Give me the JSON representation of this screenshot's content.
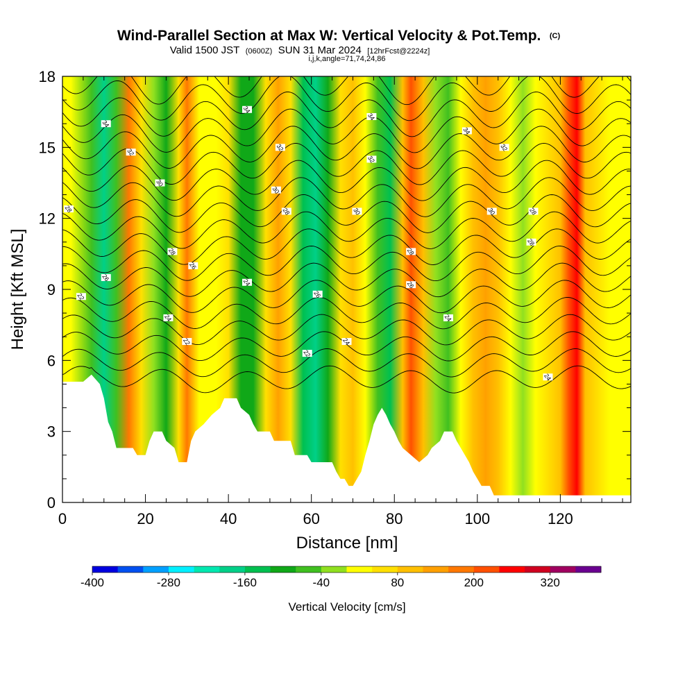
{
  "chart_data": {
    "type": "heatmap",
    "title": "Wind-Parallel Section at Max W: Vertical Velocity & Pot.Temp.",
    "title_mark": "(C)",
    "subtitle": {
      "prefix": "Valid 1500 JST",
      "utc": "(0600Z)",
      "date": "SUN 31 Mar 2024",
      "fcst": "[12hrFcst@2224z]"
    },
    "info_line": "i,j,k,angle=71,74,24,86",
    "xlabel": "Distance [nm]",
    "ylabel": "Height [Kft MSL]",
    "xlim": [
      0,
      137
    ],
    "ylim": [
      0,
      18
    ],
    "x_ticks": [
      "0",
      "20",
      "40",
      "60",
      "80",
      "100",
      "120"
    ],
    "y_ticks": [
      "0",
      "3",
      "6",
      "9",
      "12",
      "15",
      "18"
    ],
    "colorbar": {
      "title": "Vertical Velocity [cm/s]",
      "tick_labels": [
        "-400",
        "-280",
        "-160",
        "-40",
        "80",
        "200",
        "320"
      ],
      "levels": [
        -400,
        -360,
        -320,
        -280,
        -240,
        -200,
        -160,
        -120,
        -80,
        -40,
        0,
        40,
        80,
        120,
        160,
        200,
        240,
        280,
        320,
        360
      ],
      "colors": [
        "#0000e0",
        "#0050f0",
        "#00a0ff",
        "#00f0ff",
        "#00e8b0",
        "#00d088",
        "#00c050",
        "#10a818",
        "#40c020",
        "#90e020",
        "#ffff00",
        "#ffe000",
        "#ffc000",
        "#ffa000",
        "#ff7800",
        "#ff5000",
        "#ff0000",
        "#d00020",
        "#a00060",
        "#6a0090"
      ]
    },
    "w_columns": [
      {
        "x": 2,
        "w": 0
      },
      {
        "x": 7,
        "w": -60
      },
      {
        "x": 10,
        "w": -190
      },
      {
        "x": 13,
        "w": -60
      },
      {
        "x": 16,
        "w": 180
      },
      {
        "x": 19,
        "w": 70
      },
      {
        "x": 22,
        "w": -30
      },
      {
        "x": 25,
        "w": -120
      },
      {
        "x": 28,
        "w": 50
      },
      {
        "x": 30,
        "w": 170
      },
      {
        "x": 33,
        "w": 30
      },
      {
        "x": 37,
        "w": 10
      },
      {
        "x": 40,
        "w": 60
      },
      {
        "x": 43,
        "w": -120
      },
      {
        "x": 46,
        "w": -90
      },
      {
        "x": 49,
        "w": 70
      },
      {
        "x": 52,
        "w": 150
      },
      {
        "x": 55,
        "w": 50
      },
      {
        "x": 58,
        "w": -150
      },
      {
        "x": 61,
        "w": -190
      },
      {
        "x": 64,
        "w": -90
      },
      {
        "x": 67,
        "w": 60
      },
      {
        "x": 70,
        "w": 100
      },
      {
        "x": 73,
        "w": 0
      },
      {
        "x": 76,
        "w": -60
      },
      {
        "x": 79,
        "w": -130
      },
      {
        "x": 82,
        "w": 100
      },
      {
        "x": 84,
        "w": 230
      },
      {
        "x": 87,
        "w": 100
      },
      {
        "x": 90,
        "w": -20
      },
      {
        "x": 93,
        "w": -60
      },
      {
        "x": 96,
        "w": 30
      },
      {
        "x": 99,
        "w": 80
      },
      {
        "x": 102,
        "w": 130
      },
      {
        "x": 105,
        "w": 100
      },
      {
        "x": 108,
        "w": 10
      },
      {
        "x": 111,
        "w": -40
      },
      {
        "x": 114,
        "w": 30
      },
      {
        "x": 117,
        "w": 50
      },
      {
        "x": 120,
        "w": 90
      },
      {
        "x": 122,
        "w": 200
      },
      {
        "x": 124,
        "w": 260
      },
      {
        "x": 126,
        "w": 90
      },
      {
        "x": 129,
        "w": 40
      },
      {
        "x": 132,
        "w": 20
      },
      {
        "x": 135,
        "w": 0
      },
      {
        "x": 137,
        "w": 0
      }
    ],
    "terrain": [
      {
        "x": 0,
        "y": 5.1
      },
      {
        "x": 5,
        "y": 5.1
      },
      {
        "x": 7,
        "y": 5.4
      },
      {
        "x": 9,
        "y": 5.0
      },
      {
        "x": 10,
        "y": 4.4
      },
      {
        "x": 11,
        "y": 3.4
      },
      {
        "x": 12,
        "y": 3.0
      },
      {
        "x": 13,
        "y": 2.3
      },
      {
        "x": 17,
        "y": 2.3
      },
      {
        "x": 18,
        "y": 2.0
      },
      {
        "x": 20,
        "y": 2.0
      },
      {
        "x": 21,
        "y": 2.6
      },
      {
        "x": 22,
        "y": 3.0
      },
      {
        "x": 24,
        "y": 3.0
      },
      {
        "x": 25,
        "y": 2.6
      },
      {
        "x": 27,
        "y": 2.3
      },
      {
        "x": 28,
        "y": 1.7
      },
      {
        "x": 30,
        "y": 1.7
      },
      {
        "x": 31,
        "y": 2.6
      },
      {
        "x": 32,
        "y": 3.0
      },
      {
        "x": 34,
        "y": 3.3
      },
      {
        "x": 36,
        "y": 3.7
      },
      {
        "x": 38,
        "y": 4.0
      },
      {
        "x": 39,
        "y": 4.4
      },
      {
        "x": 42,
        "y": 4.4
      },
      {
        "x": 43,
        "y": 4.0
      },
      {
        "x": 45,
        "y": 3.7
      },
      {
        "x": 46,
        "y": 3.3
      },
      {
        "x": 47,
        "y": 3.0
      },
      {
        "x": 50,
        "y": 3.0
      },
      {
        "x": 51,
        "y": 2.6
      },
      {
        "x": 55,
        "y": 2.6
      },
      {
        "x": 56,
        "y": 2.0
      },
      {
        "x": 59,
        "y": 2.0
      },
      {
        "x": 60,
        "y": 1.7
      },
      {
        "x": 65,
        "y": 1.7
      },
      {
        "x": 66,
        "y": 1.3
      },
      {
        "x": 67,
        "y": 1.0
      },
      {
        "x": 68,
        "y": 1.0
      },
      {
        "x": 69,
        "y": 0.7
      },
      {
        "x": 70,
        "y": 0.7
      },
      {
        "x": 71,
        "y": 1.0
      },
      {
        "x": 72,
        "y": 1.3
      },
      {
        "x": 73,
        "y": 2.0
      },
      {
        "x": 74,
        "y": 2.6
      },
      {
        "x": 75,
        "y": 3.3
      },
      {
        "x": 76,
        "y": 3.7
      },
      {
        "x": 77,
        "y": 4.0
      },
      {
        "x": 78,
        "y": 3.7
      },
      {
        "x": 79,
        "y": 3.3
      },
      {
        "x": 80,
        "y": 3.0
      },
      {
        "x": 81,
        "y": 2.6
      },
      {
        "x": 82,
        "y": 2.3
      },
      {
        "x": 84,
        "y": 2.0
      },
      {
        "x": 86,
        "y": 1.7
      },
      {
        "x": 88,
        "y": 2.0
      },
      {
        "x": 89,
        "y": 2.3
      },
      {
        "x": 91,
        "y": 2.6
      },
      {
        "x": 92,
        "y": 3.0
      },
      {
        "x": 94,
        "y": 3.0
      },
      {
        "x": 95,
        "y": 2.6
      },
      {
        "x": 96,
        "y": 2.3
      },
      {
        "x": 97,
        "y": 2.0
      },
      {
        "x": 98,
        "y": 1.7
      },
      {
        "x": 99,
        "y": 1.3
      },
      {
        "x": 100,
        "y": 1.0
      },
      {
        "x": 101,
        "y": 0.7
      },
      {
        "x": 103,
        "y": 0.7
      },
      {
        "x": 104,
        "y": 0.3
      },
      {
        "x": 137,
        "y": 0.3
      }
    ],
    "theta_isentropes": [
      {
        "base": 5.2,
        "label": "22"
      },
      {
        "base": 5.9,
        "label": ""
      },
      {
        "base": 6.6,
        "label": "24"
      },
      {
        "base": 7.3,
        "label": ""
      },
      {
        "base": 8.0,
        "label": "26"
      },
      {
        "base": 8.7,
        "label": ""
      },
      {
        "base": 9.4,
        "label": "28"
      },
      {
        "base": 10.1,
        "label": ""
      },
      {
        "base": 10.8,
        "label": ""
      },
      {
        "base": 11.5,
        "label": "30"
      },
      {
        "base": 12.2,
        "label": ""
      },
      {
        "base": 12.9,
        "label": "32"
      },
      {
        "base": 13.6,
        "label": ""
      },
      {
        "base": 14.3,
        "label": ""
      },
      {
        "base": 15.0,
        "label": "34"
      },
      {
        "base": 15.7,
        "label": ""
      },
      {
        "base": 16.4,
        "label": ""
      },
      {
        "base": 17.1,
        "label": ""
      },
      {
        "base": 17.8,
        "label": ""
      }
    ],
    "contour_labels": [
      {
        "x": 4.5,
        "y": 8.7,
        "t": "22"
      },
      {
        "x": 1.5,
        "y": 12.4,
        "t": "28"
      },
      {
        "x": 10.5,
        "y": 9.5,
        "t": "26"
      },
      {
        "x": 10.5,
        "y": 16.0,
        "t": "34"
      },
      {
        "x": 16.5,
        "y": 14.8,
        "t": "32"
      },
      {
        "x": 23.5,
        "y": 13.5,
        "t": "30"
      },
      {
        "x": 26.5,
        "y": 10.6,
        "t": "28"
      },
      {
        "x": 25.5,
        "y": 7.8,
        "t": "24"
      },
      {
        "x": 30.0,
        "y": 6.8,
        "t": "22"
      },
      {
        "x": 31.5,
        "y": 10.0,
        "t": "26"
      },
      {
        "x": 44.5,
        "y": 9.3,
        "t": "24"
      },
      {
        "x": 44.5,
        "y": 16.6,
        "t": "34"
      },
      {
        "x": 52.5,
        "y": 15.0,
        "t": "32"
      },
      {
        "x": 51.5,
        "y": 13.2,
        "t": "30"
      },
      {
        "x": 54.0,
        "y": 12.3,
        "t": "28"
      },
      {
        "x": 61.5,
        "y": 8.8,
        "t": "26"
      },
      {
        "x": 59.0,
        "y": 6.3,
        "t": "22"
      },
      {
        "x": 68.5,
        "y": 6.8,
        "t": "24"
      },
      {
        "x": 71.0,
        "y": 12.3,
        "t": "30"
      },
      {
        "x": 74.5,
        "y": 16.3,
        "t": "34"
      },
      {
        "x": 74.5,
        "y": 14.5,
        "t": "32"
      },
      {
        "x": 84.0,
        "y": 10.6,
        "t": "28"
      },
      {
        "x": 84.0,
        "y": 9.2,
        "t": "26"
      },
      {
        "x": 93.0,
        "y": 7.8,
        "t": "24"
      },
      {
        "x": 97.5,
        "y": 15.7,
        "t": "34"
      },
      {
        "x": 106.5,
        "y": 15.0,
        "t": "32"
      },
      {
        "x": 103.5,
        "y": 12.3,
        "t": "30"
      },
      {
        "x": 113.5,
        "y": 12.3,
        "t": "28"
      },
      {
        "x": 113.0,
        "y": 11.0,
        "t": "28"
      },
      {
        "x": 117.0,
        "y": 5.3,
        "t": "24"
      }
    ]
  }
}
